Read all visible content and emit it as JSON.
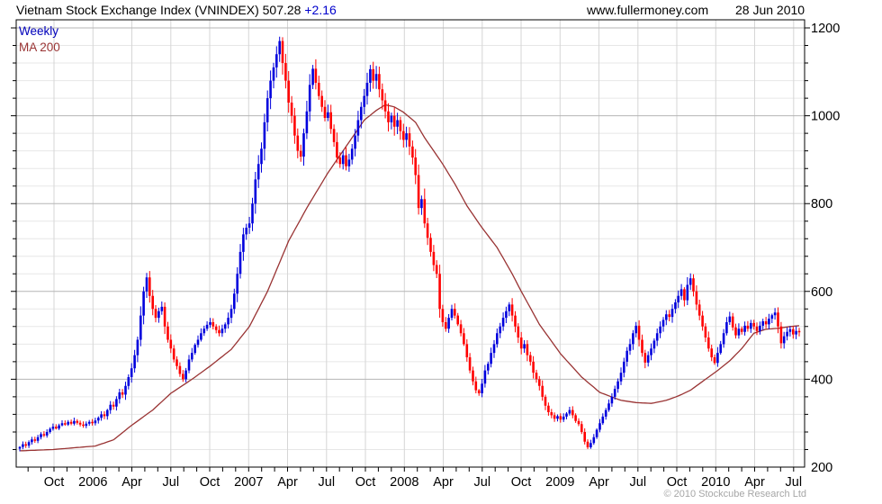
{
  "header": {
    "title": "Vietnam Stock Exchange Index (VNINDEX) 507.28",
    "change": "+2.16",
    "website": "www.fullermoney.com",
    "date": "28 Jun 2010"
  },
  "legend": {
    "series1": "Weekly",
    "series2": "MA 200"
  },
  "footer": {
    "copyright": "© 2010 Stockcube Research Ltd"
  },
  "colors": {
    "up_candle": "#0000dd",
    "down_candle": "#ff0000",
    "ma_line": "#993333",
    "legend_weekly": "#0000bb",
    "legend_ma": "#993333",
    "change_text": "#0000cc",
    "title_text": "#000000",
    "copyright_text": "#a6a6a6",
    "grid_major": "#b5b5b5",
    "grid_minor": "#e7e7e7",
    "grid_vertical": "#d6d6d6",
    "axis": "#000000",
    "axis_text": "#000000"
  },
  "chart_data": {
    "type": "candlestick",
    "title": "Vietnam Stock Exchange Index (VNINDEX)",
    "last_value": 507.28,
    "last_change": 2.16,
    "interval": "weekly",
    "date_range": "Jul 2005 - Jul 2010",
    "grid": "on",
    "legend_position": "top-left",
    "y_axis": {
      "min": 200,
      "max": 1217,
      "label_step": 200,
      "minor_step": 40,
      "labels": [
        1200,
        1000,
        800,
        600,
        400,
        200
      ]
    },
    "x_axis": {
      "labels": [
        "Oct",
        "2006",
        "Apr",
        "Jul",
        "Oct",
        "2007",
        "Apr",
        "Jul",
        "Oct",
        "2008",
        "Apr",
        "Jul",
        "Oct",
        "2009",
        "Apr",
        "Jul",
        "Oct",
        "2010",
        "Apr",
        "Jul"
      ],
      "tick_interval": "monthly",
      "label_interval": "quarterly"
    },
    "series": [
      {
        "name": "Weekly",
        "type": "candlestick",
        "last_close": 507.28,
        "closes": [
          246,
          252,
          249,
          257,
          263,
          260,
          268,
          275,
          272,
          280,
          287,
          292,
          288,
          295,
          300,
          297,
          303,
          299,
          305,
          301,
          297,
          294,
          299,
          303,
          300,
          306,
          312,
          320,
          316,
          330,
          342,
          338,
          355,
          370,
          365,
          385,
          405,
          425,
          455,
          490,
          545,
          600,
          632,
          590,
          560,
          540,
          555,
          565,
          520,
          490,
          470,
          445,
          430,
          412,
          400,
          420,
          445,
          460,
          478,
          490,
          505,
          515,
          524,
          530,
          520,
          512,
          505,
          515,
          525,
          540,
          560,
          595,
          640,
          690,
          730,
          745,
          755,
          800,
          855,
          890,
          925,
          985,
          1040,
          1080,
          1110,
          1140,
          1170,
          1120,
          1080,
          1030,
          1000,
          955,
          920,
          907,
          960,
          1010,
          1070,
          1107,
          1075,
          1045,
          1020,
          995,
          1008,
          970,
          940,
          905,
          890,
          910,
          885,
          900,
          925,
          955,
          990,
          1020,
          1045,
          1075,
          1106,
          1080,
          1095,
          1060,
          1035,
          1010,
          985,
          1000,
          975,
          990,
          965,
          945,
          960,
          930,
          905,
          865,
          790,
          810,
          755,
          722,
          690,
          660,
          640,
          560,
          530,
          515,
          540,
          560,
          545,
          525,
          505,
          480,
          450,
          420,
          395,
          375,
          368,
          390,
          420,
          435,
          460,
          480,
          505,
          520,
          540,
          555,
          570,
          545,
          520,
          495,
          470,
          480,
          455,
          440,
          415,
          400,
          385,
          360,
          340,
          325,
          318,
          310,
          316,
          308,
          315,
          322,
          330,
          318,
          305,
          298,
          280,
          258,
          245,
          255,
          268,
          285,
          300,
          315,
          330,
          345,
          360,
          378,
          395,
          415,
          440,
          465,
          480,
          505,
          522,
          490,
          460,
          438,
          455,
          470,
          488,
          505,
          520,
          535,
          548,
          542,
          560,
          575,
          590,
          605,
          580,
          615,
          630,
          600,
          570,
          545,
          520,
          495,
          470,
          450,
          437,
          460,
          480,
          505,
          530,
          543,
          518,
          500,
          515,
          508,
          522,
          515,
          528,
          520,
          510,
          522,
          532,
          525,
          538,
          546,
          552,
          520,
          482,
          498,
          508,
          514,
          502,
          510,
          507
        ]
      },
      {
        "name": "MA 200",
        "type": "line",
        "anchors": [
          [
            0,
            237
          ],
          [
            11,
            240
          ],
          [
            25,
            248
          ],
          [
            31,
            262
          ],
          [
            37,
            295
          ],
          [
            44,
            330
          ],
          [
            50,
            368
          ],
          [
            57,
            400
          ],
          [
            63,
            430
          ],
          [
            70,
            468
          ],
          [
            76,
            520
          ],
          [
            82,
            600
          ],
          [
            89,
            715
          ],
          [
            95,
            790
          ],
          [
            102,
            870
          ],
          [
            108,
            930
          ],
          [
            114,
            990
          ],
          [
            118,
            1012
          ],
          [
            121,
            1025
          ],
          [
            124,
            1020
          ],
          [
            127,
            1008
          ],
          [
            131,
            985
          ],
          [
            134,
            950
          ],
          [
            140,
            890
          ],
          [
            144,
            845
          ],
          [
            148,
            795
          ],
          [
            153,
            745
          ],
          [
            158,
            700
          ],
          [
            163,
            640
          ],
          [
            166,
            600
          ],
          [
            172,
            525
          ],
          [
            179,
            458
          ],
          [
            186,
            405
          ],
          [
            192,
            370
          ],
          [
            199,
            352
          ],
          [
            204,
            347
          ],
          [
            209,
            345
          ],
          [
            214,
            352
          ],
          [
            218,
            362
          ],
          [
            222,
            375
          ],
          [
            226,
            395
          ],
          [
            231,
            420
          ],
          [
            235,
            442
          ],
          [
            239,
            470
          ],
          [
            243,
            505
          ],
          [
            247,
            514
          ],
          [
            251,
            516
          ],
          [
            255,
            520
          ],
          [
            258,
            522
          ]
        ]
      }
    ]
  }
}
